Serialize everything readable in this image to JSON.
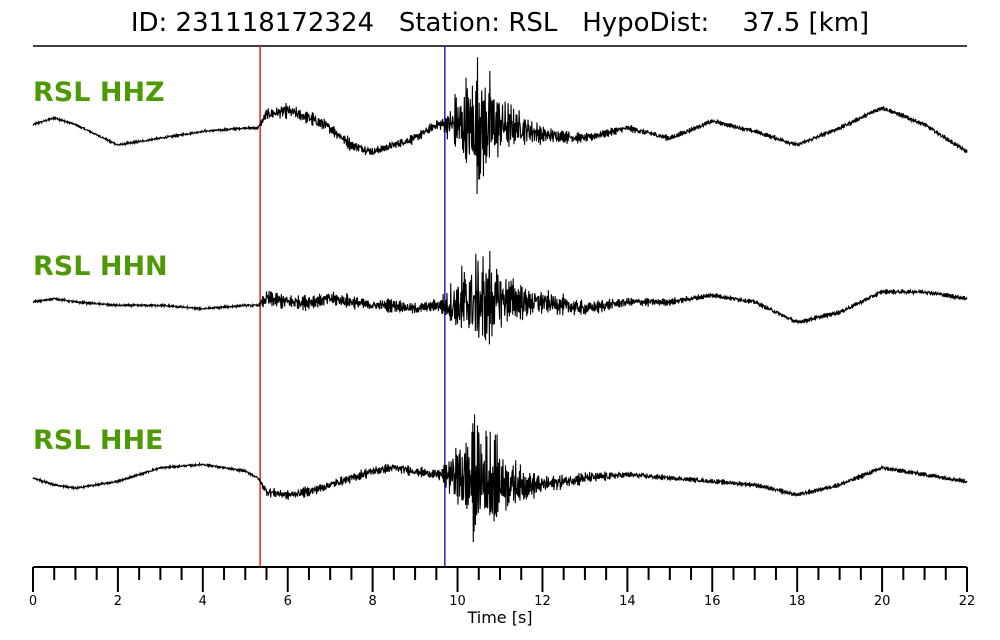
{
  "header": {
    "id_label": "ID:",
    "event_id": "231118172324",
    "station_label": "Station:",
    "station": "RSL",
    "hypodist_label": "HypoDist:",
    "hypodist": "37.5",
    "hypodist_unit": "[km]"
  },
  "colors": {
    "trace": "#000000",
    "label": "#4e9a06",
    "p_pick": "#dd2222",
    "s_pick": "#2222cc"
  },
  "chart_data": {
    "type": "line",
    "xlabel": "Time [s]",
    "xlim": [
      0,
      22
    ],
    "major_ticks": [
      0,
      2,
      4,
      6,
      8,
      10,
      12,
      14,
      16,
      18,
      20,
      22
    ],
    "minor_tick_step": 0.5,
    "picks": [
      {
        "phase": "P",
        "time": 5.35,
        "color": "#dd2222"
      },
      {
        "phase": "S",
        "time": 9.7,
        "color": "#2222cc"
      }
    ],
    "series": [
      {
        "name": "RSL HHZ",
        "envelope_times": [
          0,
          0.5,
          1,
          2,
          3,
          4,
          5,
          5.3,
          5.5,
          6,
          6.5,
          7,
          7.5,
          8,
          8.5,
          9,
          9.5,
          9.7,
          10,
          10.3,
          10.5,
          10.8,
          11,
          11.5,
          12,
          13,
          14,
          15,
          16,
          17,
          18,
          19,
          20,
          21,
          22
        ],
        "baseline": [
          0.1,
          0.3,
          0.1,
          -0.5,
          -0.3,
          -0.1,
          0.0,
          0.0,
          0.4,
          0.5,
          0.3,
          0.0,
          -0.5,
          -0.7,
          -0.5,
          -0.3,
          0.1,
          0.1,
          0.1,
          0.0,
          0.0,
          0.1,
          0.1,
          0.0,
          -0.2,
          -0.3,
          0.0,
          -0.3,
          0.2,
          -0.1,
          -0.5,
          0.0,
          0.6,
          0.1,
          -0.7
        ],
        "amplitude": [
          0.05,
          0.05,
          0.05,
          0.05,
          0.05,
          0.05,
          0.05,
          0.05,
          0.25,
          0.3,
          0.3,
          0.25,
          0.25,
          0.2,
          0.2,
          0.2,
          0.2,
          0.4,
          1.6,
          2.4,
          2.6,
          2.2,
          1.4,
          0.7,
          0.35,
          0.2,
          0.15,
          0.12,
          0.1,
          0.1,
          0.1,
          0.1,
          0.1,
          0.1,
          0.1
        ]
      },
      {
        "name": "RSL HHN",
        "envelope_times": [
          0,
          0.5,
          1,
          2,
          3,
          4,
          5,
          5.3,
          5.5,
          6,
          6.5,
          7,
          7.5,
          8,
          8.5,
          9,
          9.5,
          9.7,
          10,
          10.3,
          10.5,
          10.8,
          11,
          11.5,
          12,
          13,
          14,
          15,
          16,
          17,
          18,
          19,
          20,
          21,
          22
        ],
        "baseline": [
          0.0,
          0.1,
          0.0,
          -0.1,
          -0.1,
          -0.2,
          -0.1,
          -0.1,
          0.1,
          0.0,
          0.0,
          0.1,
          0.0,
          -0.1,
          -0.1,
          -0.2,
          -0.1,
          -0.1,
          -0.1,
          0.0,
          0.0,
          0.0,
          0.1,
          0.0,
          0.0,
          -0.2,
          0.0,
          0.0,
          0.2,
          0.0,
          -0.6,
          -0.3,
          0.3,
          0.3,
          0.1
        ],
        "amplitude": [
          0.05,
          0.05,
          0.05,
          0.05,
          0.05,
          0.05,
          0.05,
          0.05,
          0.35,
          0.35,
          0.3,
          0.3,
          0.3,
          0.25,
          0.25,
          0.25,
          0.25,
          0.5,
          1.4,
          2.0,
          2.2,
          1.9,
          1.3,
          0.8,
          0.5,
          0.3,
          0.2,
          0.15,
          0.1,
          0.1,
          0.1,
          0.1,
          0.1,
          0.1,
          0.1
        ]
      },
      {
        "name": "RSL HHE",
        "envelope_times": [
          0,
          0.5,
          1,
          2,
          3,
          4,
          5,
          5.3,
          5.5,
          6,
          6.5,
          7,
          7.5,
          8,
          8.5,
          9,
          9.5,
          9.7,
          10,
          10.3,
          10.5,
          10.8,
          11,
          11.5,
          12,
          13,
          14,
          15,
          16,
          17,
          18,
          19,
          20,
          21,
          22
        ],
        "baseline": [
          0.0,
          -0.2,
          -0.3,
          -0.1,
          0.3,
          0.4,
          0.2,
          0.0,
          -0.4,
          -0.5,
          -0.4,
          -0.2,
          0.0,
          0.2,
          0.3,
          0.2,
          0.1,
          0.1,
          0.1,
          0.0,
          0.0,
          -0.1,
          -0.1,
          -0.2,
          -0.2,
          0.0,
          0.1,
          0.0,
          -0.1,
          -0.2,
          -0.5,
          -0.2,
          0.3,
          0.1,
          -0.1
        ],
        "amplitude": [
          0.05,
          0.05,
          0.05,
          0.05,
          0.05,
          0.05,
          0.05,
          0.05,
          0.2,
          0.2,
          0.2,
          0.2,
          0.2,
          0.2,
          0.2,
          0.2,
          0.2,
          0.4,
          1.4,
          2.4,
          2.6,
          2.2,
          1.4,
          0.7,
          0.4,
          0.25,
          0.15,
          0.1,
          0.1,
          0.1,
          0.1,
          0.1,
          0.1,
          0.1,
          0.1
        ]
      }
    ]
  }
}
